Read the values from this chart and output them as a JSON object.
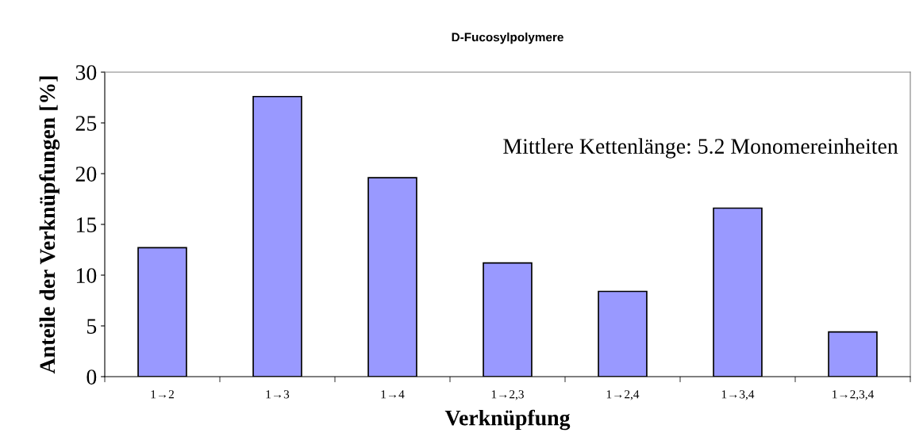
{
  "chart_data": {
    "type": "bar",
    "title": "D-Fucosylpolymere",
    "xlabel": "Verknüpfung",
    "ylabel": "Anteile der Verknüpfungen [%]",
    "categories": [
      "1→2",
      "1→3",
      "1→4",
      "1→2,3",
      "1→2,4",
      "1→3,4",
      "1→2,3,4"
    ],
    "values": [
      12.7,
      27.6,
      19.6,
      11.2,
      8.4,
      16.6,
      4.4
    ],
    "color": "#9999ff",
    "ylim": [
      0,
      30
    ],
    "yticks": [
      0,
      5,
      10,
      15,
      20,
      25,
      30
    ],
    "grid": false,
    "legend": false,
    "annotations": [
      "Mittlere Kettenlänge: 5.2 Monomereinheiten"
    ]
  }
}
